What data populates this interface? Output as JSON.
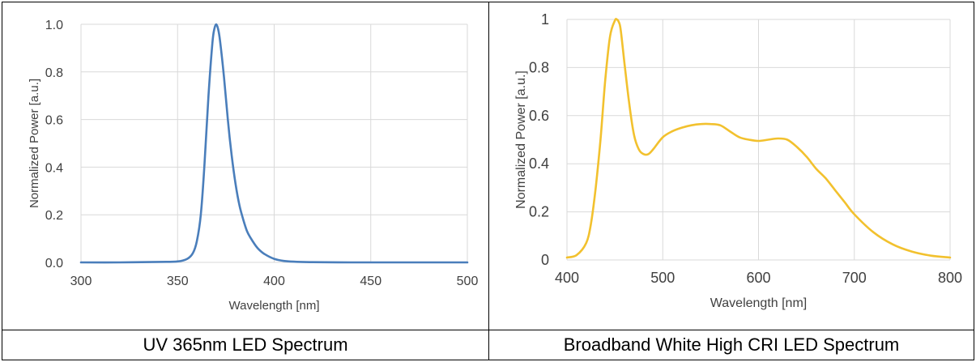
{
  "chart_data": [
    {
      "type": "line",
      "title": "",
      "xlabel": "Wavelength [nm]",
      "ylabel": "Normalized Power [a.u.]",
      "xlim": [
        300,
        500
      ],
      "ylim": [
        0,
        1.0
      ],
      "xticks": [
        "300",
        "350",
        "400",
        "450",
        "500"
      ],
      "yticks": [
        "0.0",
        "0.2",
        "0.4",
        "0.6",
        "0.8",
        "1.0"
      ],
      "grid": true,
      "legend": "none",
      "color": "#4a7ebb",
      "series": [
        {
          "x": [
            300,
            320,
            340,
            350,
            355,
            358,
            360,
            362,
            364,
            366,
            368,
            369,
            370,
            371,
            372,
            374,
            376,
            378,
            380,
            382,
            384,
            386,
            388,
            390,
            392,
            395,
            400,
            405,
            410,
            420,
            440,
            460,
            480,
            500
          ],
          "values": [
            0.0,
            0.0,
            0.002,
            0.004,
            0.015,
            0.04,
            0.09,
            0.2,
            0.42,
            0.7,
            0.92,
            0.98,
            1.0,
            0.98,
            0.93,
            0.78,
            0.6,
            0.45,
            0.33,
            0.24,
            0.18,
            0.13,
            0.1,
            0.075,
            0.055,
            0.035,
            0.015,
            0.006,
            0.003,
            0.001,
            0.0,
            0.0,
            0.0,
            0.0
          ]
        }
      ]
    },
    {
      "type": "line",
      "title": "",
      "xlabel": "Wavelength [nm]",
      "ylabel": "Normalized Power [a.u.]",
      "xlim": [
        400,
        800
      ],
      "ylim": [
        0,
        1
      ],
      "xticks": [
        "400",
        "500",
        "600",
        "700",
        "800"
      ],
      "yticks": [
        "0",
        "0.2",
        "0.4",
        "0.6",
        "0.8",
        "1"
      ],
      "grid": true,
      "legend": "none",
      "color": "#f2c12e",
      "series": [
        {
          "x": [
            400,
            410,
            420,
            425,
            430,
            435,
            440,
            445,
            450,
            452,
            454,
            456,
            460,
            465,
            470,
            475,
            480,
            485,
            490,
            500,
            510,
            520,
            530,
            540,
            550,
            560,
            570,
            580,
            590,
            600,
            610,
            620,
            630,
            640,
            650,
            660,
            670,
            680,
            690,
            700,
            720,
            740,
            760,
            780,
            800
          ],
          "values": [
            0.01,
            0.02,
            0.07,
            0.15,
            0.3,
            0.5,
            0.75,
            0.93,
            0.995,
            1.0,
            0.99,
            0.96,
            0.82,
            0.65,
            0.52,
            0.46,
            0.44,
            0.44,
            0.46,
            0.51,
            0.535,
            0.55,
            0.56,
            0.565,
            0.565,
            0.56,
            0.535,
            0.51,
            0.5,
            0.495,
            0.5,
            0.505,
            0.5,
            0.47,
            0.43,
            0.38,
            0.34,
            0.29,
            0.24,
            0.19,
            0.115,
            0.065,
            0.035,
            0.018,
            0.01
          ]
        }
      ]
    }
  ],
  "captions": {
    "left": "UV 365nm LED Spectrum",
    "right": "Broadband White High CRI LED Spectrum"
  }
}
